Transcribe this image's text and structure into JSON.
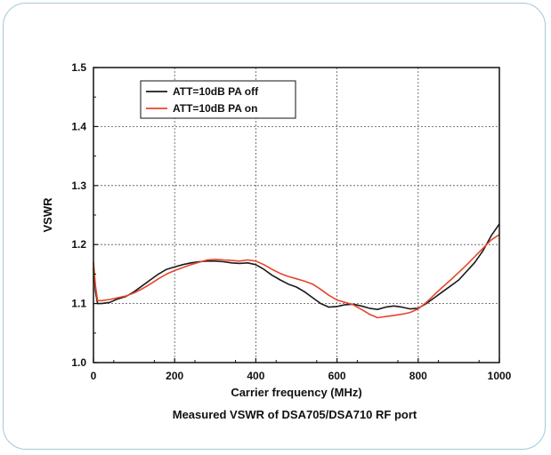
{
  "chart_data": {
    "type": "line",
    "title": "",
    "caption": "Measured VSWR of DSA705/DSA710 RF port",
    "xlabel": "Carrier frequency (MHz)",
    "ylabel": "VSWR",
    "xlim": [
      0,
      1000
    ],
    "ylim": [
      1.0,
      1.5
    ],
    "xticks": [
      0,
      200,
      400,
      600,
      800,
      1000
    ],
    "xtick_labels": [
      "0",
      "200",
      "400",
      "600",
      "800",
      "1000"
    ],
    "yticks": [
      1.0,
      1.1,
      1.2,
      1.3,
      1.4,
      1.5
    ],
    "ytick_labels": [
      "1.0",
      "1.1",
      "1.2",
      "1.3",
      "1.4",
      "1.5"
    ],
    "grid": true,
    "legend_position": "top-left",
    "series": [
      {
        "name": "ATT=10dB PA off",
        "color": "#1a1a1a",
        "x": [
          0,
          5,
          10,
          20,
          40,
          60,
          80,
          100,
          120,
          140,
          160,
          180,
          200,
          220,
          240,
          260,
          280,
          300,
          320,
          340,
          360,
          380,
          400,
          420,
          440,
          460,
          480,
          500,
          520,
          540,
          560,
          580,
          600,
          620,
          640,
          660,
          680,
          700,
          720,
          740,
          760,
          780,
          800,
          820,
          840,
          860,
          880,
          900,
          920,
          940,
          960,
          980,
          1000
        ],
        "y": [
          1.16,
          1.12,
          1.1,
          1.1,
          1.102,
          1.108,
          1.112,
          1.12,
          1.13,
          1.14,
          1.15,
          1.158,
          1.162,
          1.166,
          1.169,
          1.171,
          1.172,
          1.172,
          1.171,
          1.169,
          1.168,
          1.169,
          1.166,
          1.158,
          1.148,
          1.14,
          1.133,
          1.128,
          1.12,
          1.11,
          1.1,
          1.094,
          1.095,
          1.098,
          1.099,
          1.096,
          1.092,
          1.09,
          1.094,
          1.096,
          1.094,
          1.091,
          1.092,
          1.1,
          1.11,
          1.12,
          1.13,
          1.14,
          1.155,
          1.17,
          1.19,
          1.215,
          1.235
        ]
      },
      {
        "name": "ATT=10dB PA on",
        "color": "#e8452c",
        "x": [
          0,
          5,
          10,
          20,
          40,
          60,
          80,
          100,
          120,
          140,
          160,
          180,
          200,
          220,
          240,
          260,
          280,
          300,
          320,
          340,
          360,
          380,
          400,
          420,
          440,
          460,
          480,
          500,
          520,
          540,
          560,
          580,
          600,
          620,
          640,
          660,
          680,
          700,
          720,
          740,
          760,
          780,
          800,
          820,
          840,
          860,
          880,
          900,
          920,
          940,
          960,
          980,
          1000
        ],
        "y": [
          1.17,
          1.13,
          1.105,
          1.105,
          1.107,
          1.11,
          1.113,
          1.118,
          1.125,
          1.133,
          1.142,
          1.15,
          1.156,
          1.161,
          1.166,
          1.17,
          1.174,
          1.175,
          1.174,
          1.173,
          1.172,
          1.174,
          1.172,
          1.166,
          1.158,
          1.151,
          1.146,
          1.142,
          1.138,
          1.133,
          1.124,
          1.114,
          1.106,
          1.102,
          1.098,
          1.09,
          1.082,
          1.076,
          1.078,
          1.08,
          1.082,
          1.085,
          1.091,
          1.102,
          1.115,
          1.128,
          1.14,
          1.153,
          1.166,
          1.18,
          1.194,
          1.208,
          1.217
        ]
      }
    ]
  }
}
